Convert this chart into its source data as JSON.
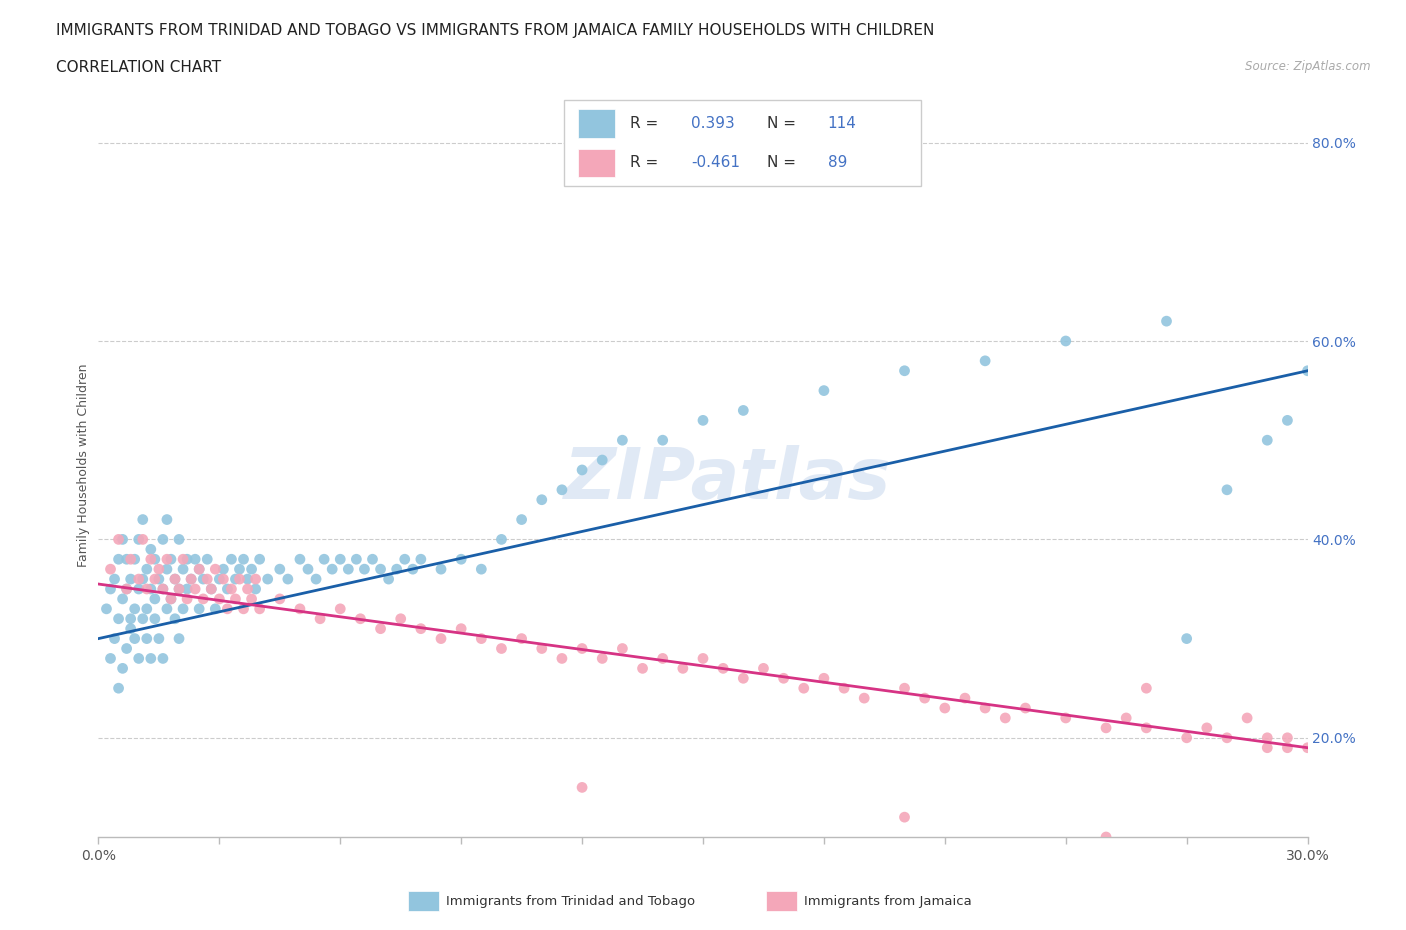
{
  "title": "IMMIGRANTS FROM TRINIDAD AND TOBAGO VS IMMIGRANTS FROM JAMAICA FAMILY HOUSEHOLDS WITH CHILDREN",
  "subtitle": "CORRELATION CHART",
  "source": "Source: ZipAtlas.com",
  "ylabel": "Family Households with Children",
  "xlim": [
    0.0,
    30.0
  ],
  "ylim": [
    10.0,
    85.0
  ],
  "yticks": [
    20.0,
    40.0,
    60.0,
    80.0
  ],
  "xticks": [
    0.0,
    3.0,
    6.0,
    9.0,
    12.0,
    15.0,
    18.0,
    21.0,
    24.0,
    27.0,
    30.0
  ],
  "blue_R": 0.393,
  "blue_N": 114,
  "pink_R": -0.461,
  "pink_N": 89,
  "blue_color": "#92c5de",
  "pink_color": "#f4a7b9",
  "blue_line_color": "#1a5fa8",
  "pink_line_color": "#d63384",
  "blue_label": "Immigrants from Trinidad and Tobago",
  "pink_label": "Immigrants from Jamaica",
  "watermark": "ZIPatlas",
  "title_fontsize": 11,
  "subtitle_fontsize": 11,
  "axis_label_fontsize": 9,
  "tick_fontsize": 10,
  "legend_fontsize": 11,
  "blue_tick_color": "#4472c4",
  "blue_scatter_x": [
    0.2,
    0.3,
    0.3,
    0.4,
    0.4,
    0.5,
    0.5,
    0.5,
    0.6,
    0.6,
    0.6,
    0.7,
    0.7,
    0.7,
    0.8,
    0.8,
    0.8,
    0.9,
    0.9,
    0.9,
    1.0,
    1.0,
    1.0,
    1.1,
    1.1,
    1.1,
    1.2,
    1.2,
    1.2,
    1.3,
    1.3,
    1.3,
    1.4,
    1.4,
    1.4,
    1.5,
    1.5,
    1.6,
    1.6,
    1.6,
    1.7,
    1.7,
    1.7,
    1.8,
    1.8,
    1.9,
    1.9,
    2.0,
    2.0,
    2.0,
    2.1,
    2.1,
    2.2,
    2.2,
    2.3,
    2.4,
    2.5,
    2.5,
    2.6,
    2.7,
    2.8,
    2.9,
    3.0,
    3.1,
    3.2,
    3.3,
    3.4,
    3.5,
    3.6,
    3.7,
    3.8,
    3.9,
    4.0,
    4.2,
    4.5,
    4.7,
    5.0,
    5.2,
    5.4,
    5.6,
    5.8,
    6.0,
    6.2,
    6.4,
    6.6,
    6.8,
    7.0,
    7.2,
    7.4,
    7.6,
    7.8,
    8.0,
    8.5,
    9.0,
    9.5,
    10.0,
    10.5,
    11.0,
    11.5,
    12.0,
    12.5,
    13.0,
    14.0,
    15.0,
    16.0,
    18.0,
    20.0,
    22.0,
    24.0,
    26.5,
    27.0,
    28.0,
    29.0,
    29.5,
    30.0
  ],
  "blue_scatter_y": [
    33.0,
    28.0,
    35.0,
    30.0,
    36.0,
    25.0,
    32.0,
    38.0,
    27.0,
    34.0,
    40.0,
    29.0,
    35.0,
    38.0,
    31.0,
    36.0,
    32.0,
    33.0,
    38.0,
    30.0,
    35.0,
    40.0,
    28.0,
    36.0,
    32.0,
    42.0,
    33.0,
    37.0,
    30.0,
    35.0,
    39.0,
    28.0,
    34.0,
    38.0,
    32.0,
    36.0,
    30.0,
    35.0,
    40.0,
    28.0,
    42.0,
    33.0,
    37.0,
    34.0,
    38.0,
    32.0,
    36.0,
    35.0,
    40.0,
    30.0,
    37.0,
    33.0,
    38.0,
    35.0,
    36.0,
    38.0,
    37.0,
    33.0,
    36.0,
    38.0,
    35.0,
    33.0,
    36.0,
    37.0,
    35.0,
    38.0,
    36.0,
    37.0,
    38.0,
    36.0,
    37.0,
    35.0,
    38.0,
    36.0,
    37.0,
    36.0,
    38.0,
    37.0,
    36.0,
    38.0,
    37.0,
    38.0,
    37.0,
    38.0,
    37.0,
    38.0,
    37.0,
    36.0,
    37.0,
    38.0,
    37.0,
    38.0,
    37.0,
    38.0,
    37.0,
    40.0,
    42.0,
    44.0,
    45.0,
    47.0,
    48.0,
    50.0,
    50.0,
    52.0,
    53.0,
    55.0,
    57.0,
    58.0,
    60.0,
    62.0,
    30.0,
    45.0,
    50.0,
    52.0,
    57.0
  ],
  "pink_scatter_x": [
    0.3,
    0.5,
    0.7,
    0.8,
    1.0,
    1.1,
    1.2,
    1.3,
    1.4,
    1.5,
    1.6,
    1.7,
    1.8,
    1.9,
    2.0,
    2.1,
    2.2,
    2.3,
    2.4,
    2.5,
    2.6,
    2.7,
    2.8,
    2.9,
    3.0,
    3.1,
    3.2,
    3.3,
    3.4,
    3.5,
    3.6,
    3.7,
    3.8,
    3.9,
    4.0,
    4.5,
    5.0,
    5.5,
    6.0,
    6.5,
    7.0,
    7.5,
    8.0,
    8.5,
    9.0,
    9.5,
    10.0,
    10.5,
    11.0,
    11.5,
    12.0,
    12.5,
    13.0,
    13.5,
    14.0,
    14.5,
    15.0,
    15.5,
    16.0,
    16.5,
    17.0,
    17.5,
    18.0,
    18.5,
    19.0,
    20.0,
    20.5,
    21.0,
    21.5,
    22.0,
    22.5,
    23.0,
    24.0,
    25.0,
    25.5,
    26.0,
    27.0,
    27.5,
    28.0,
    29.0,
    29.5,
    30.0,
    12.0,
    20.0,
    25.0,
    26.0,
    28.5,
    29.0,
    29.5
  ],
  "pink_scatter_y": [
    37.0,
    40.0,
    35.0,
    38.0,
    36.0,
    40.0,
    35.0,
    38.0,
    36.0,
    37.0,
    35.0,
    38.0,
    34.0,
    36.0,
    35.0,
    38.0,
    34.0,
    36.0,
    35.0,
    37.0,
    34.0,
    36.0,
    35.0,
    37.0,
    34.0,
    36.0,
    33.0,
    35.0,
    34.0,
    36.0,
    33.0,
    35.0,
    34.0,
    36.0,
    33.0,
    34.0,
    33.0,
    32.0,
    33.0,
    32.0,
    31.0,
    32.0,
    31.0,
    30.0,
    31.0,
    30.0,
    29.0,
    30.0,
    29.0,
    28.0,
    29.0,
    28.0,
    29.0,
    27.0,
    28.0,
    27.0,
    28.0,
    27.0,
    26.0,
    27.0,
    26.0,
    25.0,
    26.0,
    25.0,
    24.0,
    25.0,
    24.0,
    23.0,
    24.0,
    23.0,
    22.0,
    23.0,
    22.0,
    21.0,
    22.0,
    21.0,
    20.0,
    21.0,
    20.0,
    19.0,
    20.0,
    19.0,
    15.0,
    12.0,
    10.0,
    25.0,
    22.0,
    20.0,
    19.0
  ]
}
